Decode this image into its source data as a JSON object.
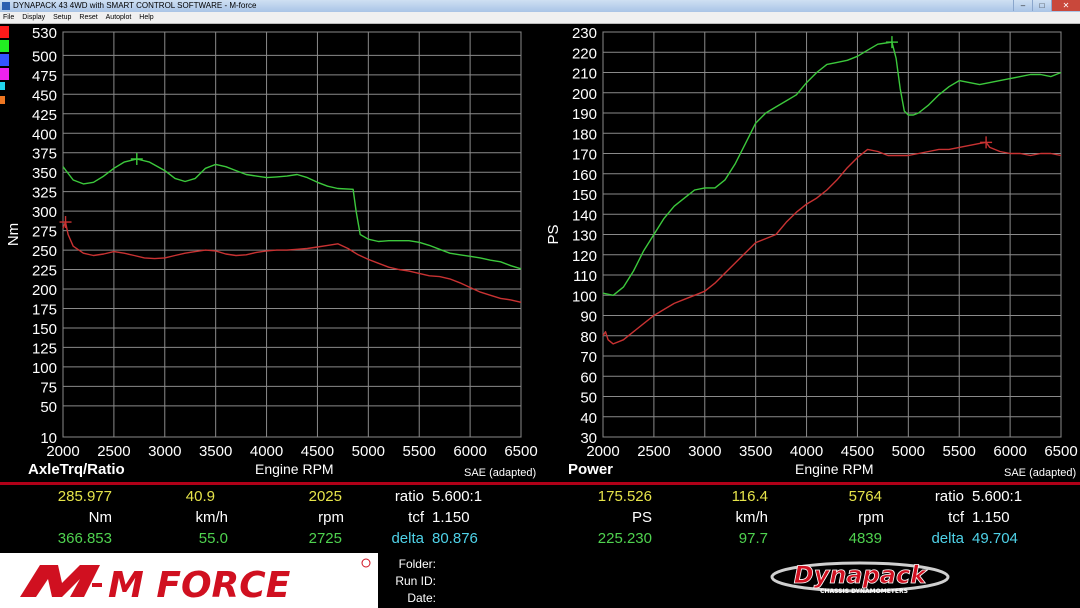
{
  "window": {
    "title": "DYNAPACK 43 4WD with SMART CONTROL SOFTWARE - M-force",
    "menu": [
      "File",
      "Display",
      "Setup",
      "Reset",
      "Autoplot",
      "Help"
    ]
  },
  "legend_colors": [
    "#ff1a1a",
    "#22ee22",
    "#3355ff",
    "#ee22ee",
    "#22d6ee",
    "#ee7722"
  ],
  "left_panel": {
    "name": "AxleTrq/Ratio",
    "x_label": "Engine RPM",
    "sae": "SAE (adapted)",
    "readout_top": {
      "value": "285.977",
      "speed": "40.9",
      "rpm": "2025",
      "ratio_label": "ratio",
      "ratio_value": "5.600:1"
    },
    "readout_units": {
      "value_unit": "Nm",
      "speed_unit": "km/h",
      "rpm_unit": "rpm",
      "tcf_label": "tcf",
      "tcf_value": "1.150"
    },
    "readout_bottom": {
      "value": "366.853",
      "speed": "55.0",
      "rpm": "2725",
      "delta_label": "delta",
      "delta_value": "80.876"
    }
  },
  "right_panel": {
    "name": "Power",
    "x_label": "Engine RPM",
    "sae": "SAE (adapted)",
    "readout_top": {
      "value": "175.526",
      "speed": "116.4",
      "rpm": "5764",
      "ratio_label": "ratio",
      "ratio_value": "5.600:1"
    },
    "readout_units": {
      "value_unit": "PS",
      "speed_unit": "km/h",
      "rpm_unit": "rpm",
      "tcf_label": "tcf",
      "tcf_value": "1.150"
    },
    "readout_bottom": {
      "value": "225.230",
      "speed": "97.7",
      "rpm": "4839",
      "delta_label": "delta",
      "delta_value": "49.704"
    }
  },
  "footer": {
    "brand_logo": "M FORCE",
    "dynapack_logo": "Dynapack",
    "dynapack_sub": "CHASSIS DYNAMOMETERS",
    "folder_label": "Folder:",
    "runid_label": "Run ID:",
    "date_label": "Date:"
  },
  "chart_data": [
    {
      "type": "line",
      "ylabel": "Nm",
      "xlabel": "Engine RPM",
      "xlim": [
        2000,
        6500
      ],
      "ylim": [
        10,
        530
      ],
      "xticks": [
        2000,
        2500,
        3000,
        3500,
        4000,
        4500,
        5000,
        5500,
        6000,
        6500
      ],
      "yticks": [
        10,
        50,
        75,
        100,
        125,
        150,
        175,
        200,
        225,
        250,
        275,
        300,
        325,
        350,
        375,
        400,
        425,
        450,
        475,
        500,
        530
      ],
      "grid": true,
      "series": [
        {
          "color": "#3cc83c",
          "x": [
            2000,
            2100,
            2200,
            2300,
            2400,
            2500,
            2600,
            2725,
            2850,
            3000,
            3100,
            3200,
            3300,
            3400,
            3500,
            3600,
            3700,
            3800,
            3900,
            4000,
            4100,
            4200,
            4300,
            4400,
            4500,
            4600,
            4700,
            4850,
            4880,
            4920,
            5000,
            5100,
            5200,
            5300,
            5400,
            5500,
            5600,
            5700,
            5800,
            5900,
            6000,
            6100,
            6200,
            6300,
            6400,
            6500
          ],
          "y": [
            357,
            340,
            335,
            337,
            345,
            355,
            363,
            367,
            363,
            352,
            342,
            338,
            342,
            355,
            360,
            357,
            352,
            347,
            345,
            343,
            344,
            345,
            347,
            343,
            337,
            332,
            329,
            328,
            300,
            270,
            264,
            261,
            262,
            262,
            262,
            260,
            256,
            251,
            246,
            244,
            242,
            240,
            237,
            235,
            230,
            226
          ]
        },
        {
          "color": "#c83232",
          "x": [
            2000,
            2025,
            2050,
            2100,
            2200,
            2300,
            2400,
            2500,
            2600,
            2700,
            2800,
            2900,
            3000,
            3100,
            3200,
            3300,
            3400,
            3500,
            3600,
            3700,
            3800,
            3900,
            4000,
            4100,
            4200,
            4300,
            4400,
            4500,
            4600,
            4700,
            4800,
            4900,
            5000,
            5100,
            5200,
            5300,
            5400,
            5500,
            5600,
            5700,
            5800,
            5900,
            6000,
            6100,
            6200,
            6300,
            6400,
            6500
          ],
          "y": [
            278,
            286,
            270,
            255,
            246,
            243,
            245,
            248,
            246,
            243,
            240,
            239,
            240,
            243,
            246,
            248,
            250,
            249,
            245,
            243,
            244,
            247,
            249,
            250,
            250,
            251,
            252,
            254,
            256,
            258,
            252,
            244,
            238,
            233,
            228,
            225,
            223,
            220,
            217,
            216,
            213,
            208,
            202,
            196,
            192,
            188,
            186,
            183
          ]
        }
      ],
      "markers": [
        {
          "x": 2725,
          "y": 367,
          "color": "#3cc83c"
        },
        {
          "x": 2025,
          "y": 286,
          "color": "#c83232"
        }
      ]
    },
    {
      "type": "line",
      "ylabel": "PS",
      "xlabel": "Engine RPM",
      "xlim": [
        2000,
        6500
      ],
      "ylim": [
        30,
        230
      ],
      "xticks": [
        2000,
        2500,
        3000,
        3500,
        4000,
        4500,
        5000,
        5500,
        6000,
        6500
      ],
      "yticks": [
        30,
        40,
        50,
        60,
        70,
        80,
        90,
        100,
        110,
        120,
        130,
        140,
        150,
        160,
        170,
        180,
        190,
        200,
        210,
        220,
        230
      ],
      "grid": true,
      "series": [
        {
          "color": "#3cc83c",
          "x": [
            2000,
            2100,
            2200,
            2300,
            2400,
            2500,
            2600,
            2700,
            2800,
            2900,
            3000,
            3100,
            3200,
            3300,
            3400,
            3500,
            3600,
            3700,
            3800,
            3900,
            4000,
            4100,
            4200,
            4300,
            4400,
            4500,
            4600,
            4700,
            4839,
            4880,
            4920,
            4960,
            5000,
            5050,
            5100,
            5200,
            5300,
            5400,
            5500,
            5600,
            5700,
            5800,
            5900,
            6000,
            6100,
            6200,
            6300,
            6400,
            6500
          ],
          "y": [
            101,
            100,
            104,
            112,
            122,
            130,
            138,
            144,
            148,
            152,
            153,
            153,
            157,
            165,
            175,
            185,
            190,
            193,
            196,
            199,
            205,
            210,
            214,
            215,
            216,
            218,
            221,
            224,
            225,
            217,
            202,
            191,
            189,
            189,
            190,
            194,
            199,
            203,
            206,
            205,
            204,
            205,
            206,
            207,
            208,
            209,
            209,
            208,
            210
          ]
        },
        {
          "color": "#c83232",
          "x": [
            2000,
            2025,
            2050,
            2100,
            2200,
            2300,
            2400,
            2500,
            2600,
            2700,
            2800,
            2900,
            3000,
            3100,
            3200,
            3300,
            3400,
            3500,
            3600,
            3700,
            3800,
            3900,
            4000,
            4100,
            4200,
            4300,
            4400,
            4500,
            4600,
            4700,
            4800,
            4900,
            5000,
            5100,
            5200,
            5300,
            5400,
            5500,
            5600,
            5700,
            5764,
            5800,
            5900,
            6000,
            6100,
            6200,
            6300,
            6400,
            6500
          ],
          "y": [
            80,
            82,
            78,
            76,
            78,
            82,
            86,
            90,
            93,
            96,
            98,
            100,
            102,
            106,
            111,
            116,
            121,
            126,
            128,
            130,
            136,
            141,
            145,
            148,
            152,
            157,
            163,
            168,
            172,
            171,
            169,
            169,
            169,
            170,
            171,
            172,
            172,
            173,
            174,
            175,
            175.5,
            173,
            171,
            170,
            170,
            169,
            170,
            170,
            169
          ]
        }
      ],
      "markers": [
        {
          "x": 4839,
          "y": 225,
          "color": "#3cc83c"
        },
        {
          "x": 5764,
          "y": 175.5,
          "color": "#c83232"
        }
      ]
    }
  ]
}
